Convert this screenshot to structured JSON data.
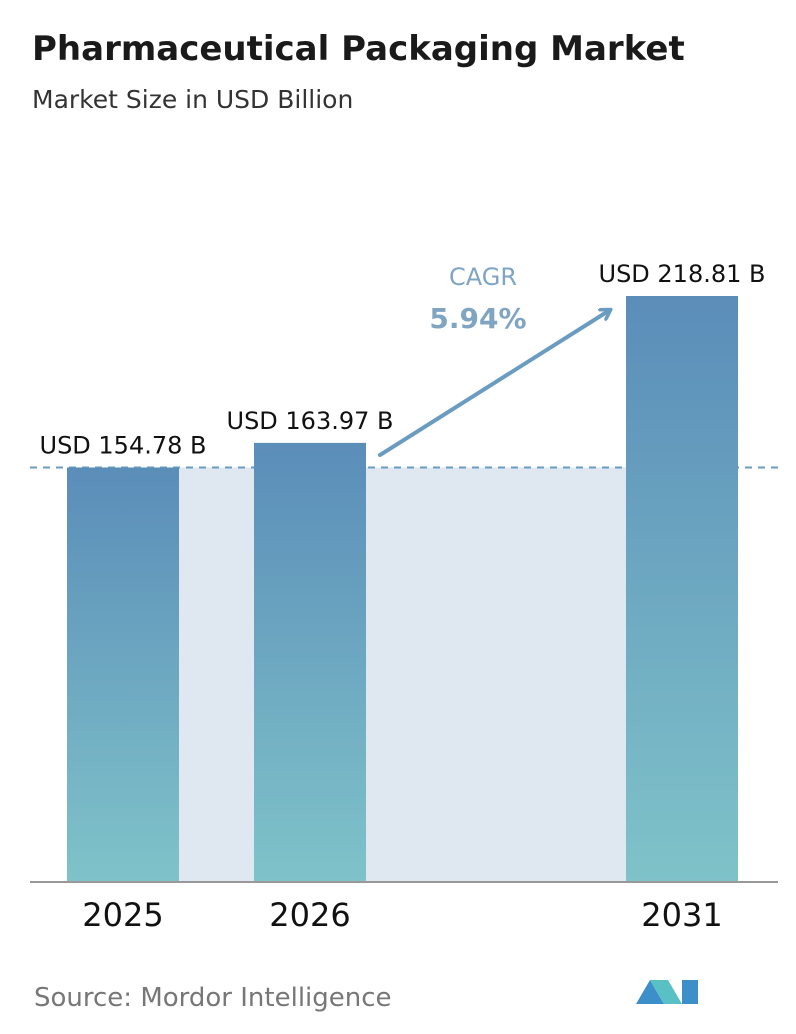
{
  "chart_data": {
    "type": "bar",
    "title": "Pharmaceutical Packaging Market",
    "subtitle": "Market Size in USD Billion",
    "categories": [
      "2025",
      "2026",
      "2031"
    ],
    "values": [
      154.78,
      163.97,
      218.81
    ],
    "value_labels": [
      "USD 154.78 B",
      "USD 163.97 B",
      "USD 218.81 B"
    ],
    "annotations": [
      "CAGR",
      "5.94%"
    ],
    "source": "Source:  Mordor Intelligence",
    "color": "#5e92ba"
  }
}
